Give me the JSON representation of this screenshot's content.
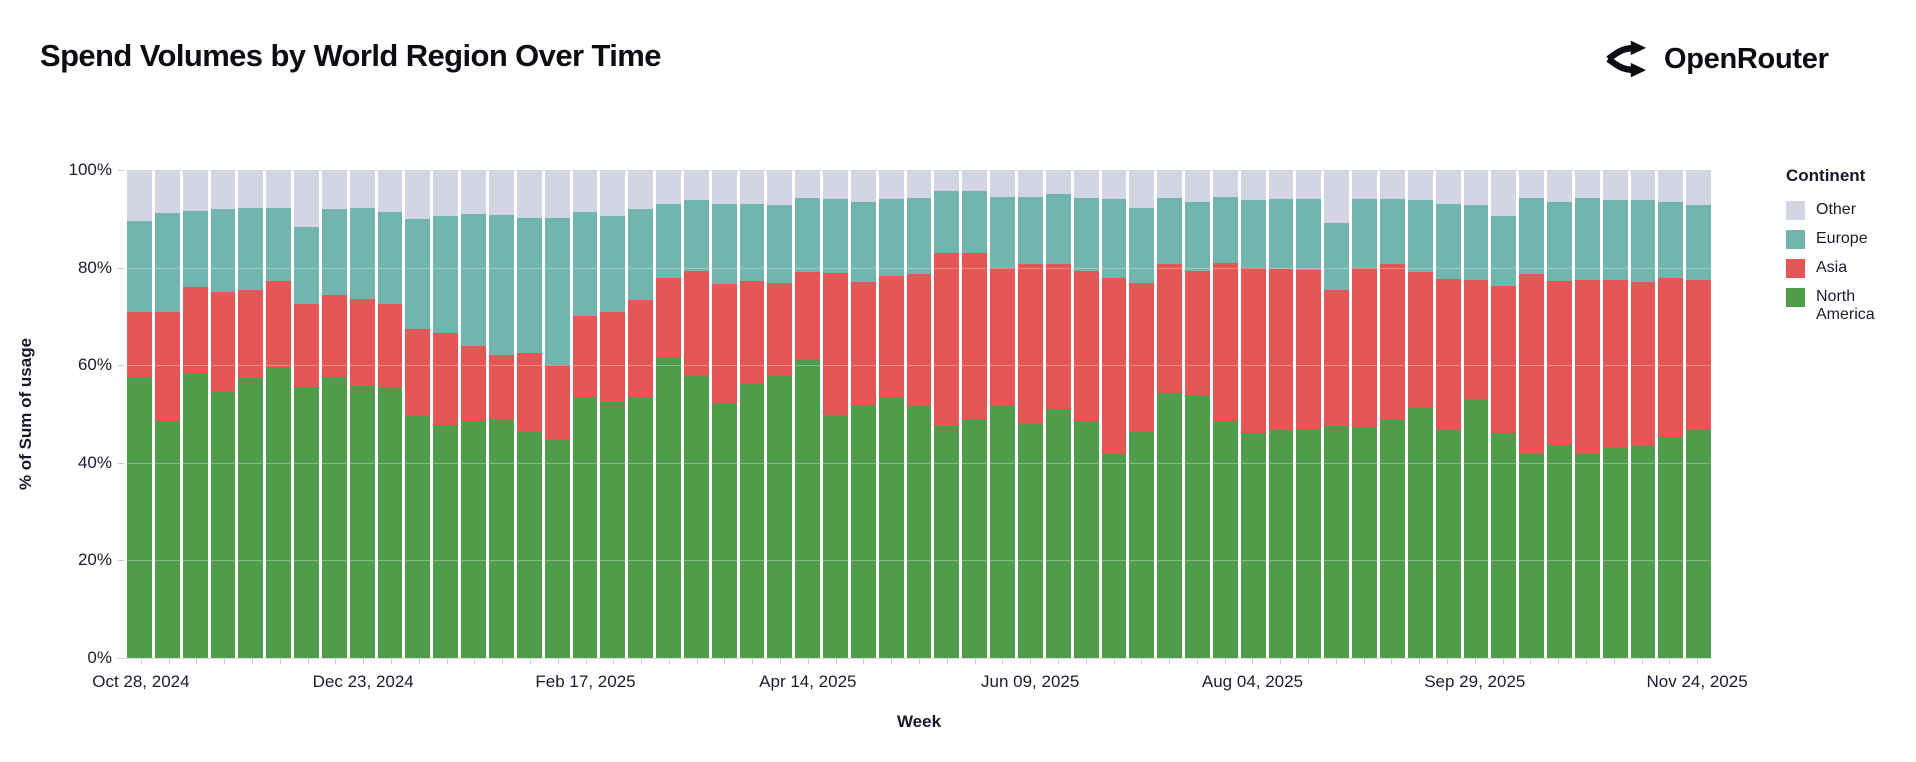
{
  "header": {
    "title": "Spend Volumes by World Region Over Time",
    "brand": {
      "name": "OpenRouter",
      "icon": "openrouter-split-arrows-icon"
    }
  },
  "colors": {
    "north_america": "#4f9d4b",
    "asia": "#e45756",
    "europe": "#72b5ae",
    "other": "#d3d5e2",
    "axis_text": "#1a1c30",
    "gridline": "#e5e6eb"
  },
  "chart_data": {
    "type": "bar",
    "stacked": true,
    "normalized_percent": true,
    "title": "Spend Volumes by World Region Over Time",
    "xlabel": "Week",
    "ylabel": "% of Sum of usage",
    "ylim": [
      0,
      100
    ],
    "grid": true,
    "y_tick_labels": [
      "100%",
      "80%",
      "60%",
      "40%",
      "20%",
      "0%"
    ],
    "x_tick_labels": [
      {
        "index": 0,
        "label": "Oct 28, 2024"
      },
      {
        "index": 8,
        "label": "Dec 23, 2024"
      },
      {
        "index": 16,
        "label": "Feb 17, 2025"
      },
      {
        "index": 24,
        "label": "Apr 14, 2025"
      },
      {
        "index": 32,
        "label": "Jun 09, 2025"
      },
      {
        "index": 40,
        "label": "Aug 04, 2025"
      },
      {
        "index": 48,
        "label": "Sep 29, 2025"
      },
      {
        "index": 56,
        "label": "Nov 24, 2025"
      }
    ],
    "categories": [
      "Oct 28, 2024",
      "Nov 04, 2024",
      "Nov 11, 2024",
      "Nov 18, 2024",
      "Nov 25, 2024",
      "Dec 02, 2024",
      "Dec 09, 2024",
      "Dec 16, 2024",
      "Dec 23, 2024",
      "Dec 30, 2024",
      "Jan 06, 2025",
      "Jan 13, 2025",
      "Jan 20, 2025",
      "Jan 27, 2025",
      "Feb 03, 2025",
      "Feb 10, 2025",
      "Feb 17, 2025",
      "Feb 24, 2025",
      "Mar 03, 2025",
      "Mar 10, 2025",
      "Mar 17, 2025",
      "Mar 24, 2025",
      "Mar 31, 2025",
      "Apr 07, 2025",
      "Apr 14, 2025",
      "Apr 21, 2025",
      "Apr 28, 2025",
      "May 05, 2025",
      "May 12, 2025",
      "May 19, 2025",
      "May 26, 2025",
      "Jun 02, 2025",
      "Jun 09, 2025",
      "Jun 16, 2025",
      "Jun 23, 2025",
      "Jun 30, 2025",
      "Jul 07, 2025",
      "Jul 14, 2025",
      "Jul 21, 2025",
      "Jul 28, 2025",
      "Aug 04, 2025",
      "Aug 11, 2025",
      "Aug 18, 2025",
      "Aug 25, 2025",
      "Sep 01, 2025",
      "Sep 08, 2025",
      "Sep 15, 2025",
      "Sep 22, 2025",
      "Sep 29, 2025",
      "Oct 06, 2025",
      "Oct 13, 2025",
      "Oct 20, 2025",
      "Oct 27, 2025",
      "Nov 03, 2025",
      "Nov 10, 2025",
      "Nov 17, 2025",
      "Nov 24, 2025"
    ],
    "series": [
      {
        "name": "North America",
        "color": "#4f9d4b",
        "values": [
          57.6,
          48.5,
          58.5,
          54.5,
          57.4,
          59.7,
          55.4,
          57.6,
          55.7,
          55.6,
          49.5,
          47.8,
          48.5,
          49.0,
          46.4,
          44.6,
          53.5,
          52.4,
          53.4,
          61.6,
          57.8,
          52.1,
          56.1,
          57.8,
          61.1,
          49.7,
          51.9,
          53.5,
          51.7,
          47.6,
          48.8,
          51.7,
          47.9,
          51.0,
          48.6,
          41.9,
          46.4,
          54.3,
          53.7,
          48.5,
          46.2,
          46.8,
          46.9,
          47.6,
          47.1,
          48.8,
          51.2,
          46.8,
          53.1,
          46.2,
          41.7,
          43.7,
          41.9,
          43.1,
          43.4,
          45.2,
          46.8
        ]
      },
      {
        "name": "Asia",
        "color": "#e45756",
        "values": [
          13.3,
          22.4,
          17.6,
          20.4,
          18.1,
          17.5,
          17.2,
          16.7,
          17.8,
          17.0,
          17.9,
          18.8,
          15.5,
          13.1,
          16.1,
          15.4,
          16.5,
          18.6,
          19.9,
          16.2,
          21.5,
          24.5,
          21.1,
          19.0,
          17.9,
          29.1,
          25.1,
          24.8,
          26.9,
          35.4,
          34.2,
          28.2,
          32.8,
          29.7,
          30.7,
          35.9,
          30.5,
          26.4,
          25.6,
          32.5,
          33.7,
          32.9,
          32.6,
          27.9,
          32.9,
          31.9,
          27.8,
          30.8,
          24.3,
          30.0,
          36.9,
          33.5,
          35.5,
          34.3,
          33.6,
          32.6,
          30.6
        ]
      },
      {
        "name": "Europe",
        "color": "#72b5ae",
        "values": [
          18.6,
          20.3,
          15.6,
          17.2,
          16.8,
          15.1,
          15.7,
          17.8,
          18.8,
          18.8,
          22.5,
          24.0,
          27.0,
          28.7,
          27.7,
          30.1,
          21.4,
          19.6,
          18.8,
          15.3,
          14.5,
          16.4,
          15.8,
          16.0,
          15.3,
          15.3,
          16.5,
          15.7,
          15.6,
          12.6,
          12.6,
          14.6,
          13.8,
          14.3,
          15.0,
          16.2,
          15.4,
          13.6,
          14.1,
          13.5,
          13.9,
          14.4,
          14.6,
          13.7,
          14.0,
          13.3,
          14.8,
          15.5,
          15.4,
          14.4,
          15.6,
          16.2,
          16.8,
          16.4,
          16.8,
          15.7,
          15.4
        ]
      },
      {
        "name": "Other",
        "color": "#d3d5e2",
        "values": [
          10.5,
          8.8,
          8.3,
          7.9,
          7.7,
          7.7,
          11.7,
          7.9,
          7.7,
          8.6,
          10.1,
          9.4,
          9.0,
          9.2,
          9.8,
          9.9,
          8.6,
          9.4,
          7.9,
          6.9,
          6.2,
          7.0,
          7.0,
          7.2,
          5.7,
          5.9,
          6.5,
          6.0,
          5.8,
          4.4,
          4.4,
          5.5,
          5.5,
          5.0,
          5.7,
          6.0,
          7.7,
          5.7,
          6.6,
          5.5,
          6.2,
          5.9,
          5.9,
          10.8,
          6.0,
          6.0,
          6.2,
          6.9,
          7.2,
          9.4,
          5.8,
          6.6,
          5.8,
          6.2,
          6.2,
          6.5,
          7.2
        ]
      }
    ],
    "legend": {
      "title": "Continent",
      "position": "right",
      "items": [
        "Other",
        "Europe",
        "Asia",
        "North America"
      ]
    }
  }
}
